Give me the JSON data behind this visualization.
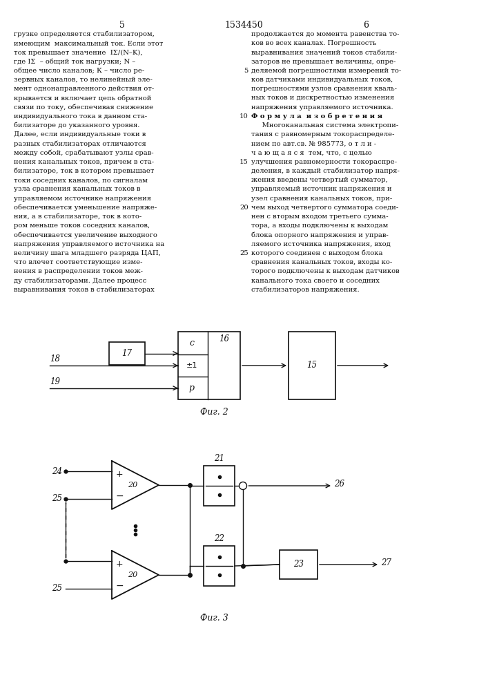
{
  "title": "1534450",
  "page_left": "5",
  "page_right": "6",
  "fig2_label": "Фиг. 2",
  "fig3_label": "Фиг. 3",
  "left_lines": [
    "грузке определяется стабилизатором,",
    "имеющим  максимальный ток. Если этот",
    "ток превышает значение  IΣ/(N–K),",
    "где IΣ  – общий ток нагрузки; N –",
    "общее число каналов; К – число ре-",
    "зервных каналов, то нелинейный эле-",
    "мент однонаправленного действия от-",
    "крывается и включает цепь обратной",
    "связи по току, обеспечивая снижение",
    "индивидуального тока в данном ста-",
    "билизаторе до указанного уровня.",
    "Далее, если индивидуальные токи в",
    "разных стабилизаторах отличаются",
    "между собой, срабатывают узлы срав-",
    "нения канальных токов, причем в ста-",
    "билизаторе, ток в котором превышает",
    "токи соседних каналов, по сигналам",
    "узла сравнения канальных токов в",
    "управляемом источнике напряжения",
    "обеспечивается уменьшение напряже-",
    "ния, а в стабилизаторе, ток в кото-",
    "ром меньше токов соседних каналов,",
    "обеспечивается увеличение выходного",
    "напряжения управляемого источника на",
    "величину шага младшего разряда ЦАП,",
    "что влечет соответствующие изме-",
    "нения в распределении токов меж-",
    "ду стабилизаторами. Далее процесс",
    "выравнивания токов в стабилизаторах"
  ],
  "right_lines": [
    "продолжается до момента равенства то-",
    "ков во всех каналах. Погрешность",
    "выравнивания значений токов стабили-",
    "заторов не превышает величины, опре-",
    "деляемой погрешностями измерений то-",
    "ков датчиками индивидуальных токов,",
    "погрешностями узлов сравнения кваль-",
    "ных токов и дискретностью изменения",
    "напряжения управляемого источника.",
    "Ф о р м у л а  и з о б р е т е н и я",
    "     Многоканальная система электропи-",
    "тания с равномерным токораспределе-",
    "нием по авт.св. № 985773, о т л и -",
    "ч а ю щ а я с я  тем, что, с целью",
    "улучшения равномерности токораспре-",
    "деления, в каждый стабилизатор напря-",
    "жения введены четвертый сумматор,",
    "управляемый источник напряжения и",
    "узел сравнения канальных токов, при-",
    "чем выход четвертого сумматора соеди-",
    "нен с вторым входом третьего сумма-",
    "тора, а входы подключены к выходам",
    "блока опорного напряжения и управ-",
    "ляемого источника напряжения, вход",
    "которого соединен с выходом блока",
    "сравнения канальных токов, входы ко-",
    "торого подключены к выходам датчиков",
    "канального тока своего и соседних",
    "стабилизаторов напряжения."
  ],
  "right_line_numbers": [
    0,
    0,
    0,
    0,
    5,
    0,
    0,
    0,
    0,
    10,
    0,
    0,
    0,
    0,
    15,
    0,
    0,
    0,
    0,
    20,
    0,
    0,
    0,
    0,
    25,
    0,
    0,
    0,
    0
  ],
  "right_bold": [
    false,
    false,
    false,
    false,
    false,
    false,
    false,
    false,
    false,
    true,
    false,
    false,
    false,
    false,
    false,
    false,
    false,
    false,
    false,
    false,
    false,
    false,
    false,
    false,
    false,
    false,
    false,
    false,
    false
  ]
}
